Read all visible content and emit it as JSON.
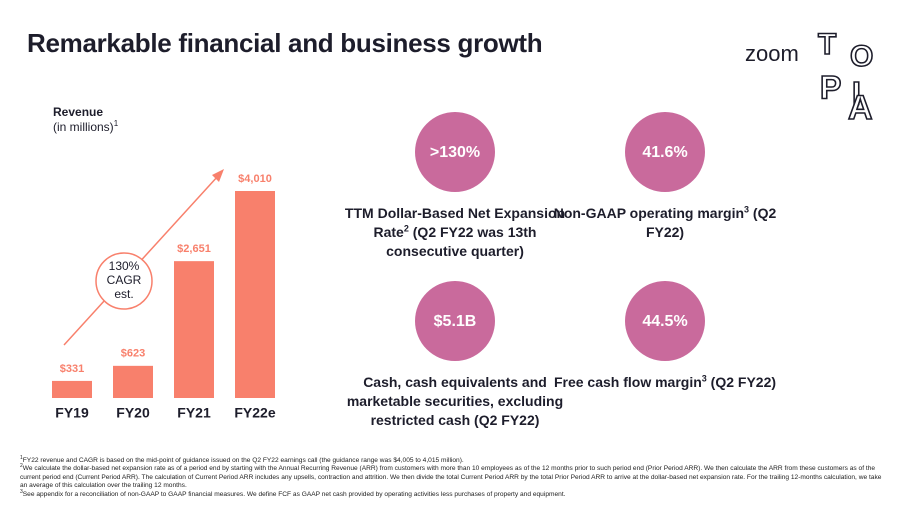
{
  "title": "Remarkable financial and business growth",
  "logo": {
    "word": "zoom",
    "letters": [
      "T",
      "O",
      "P",
      "I",
      "A"
    ]
  },
  "chart_data": {
    "type": "bar",
    "axis_label": "Revenue",
    "axis_sublabel": "(in millions)",
    "axis_sublabel_note": "1",
    "categories": [
      "FY19",
      "FY20",
      "FY21",
      "FY22e"
    ],
    "values": [
      331,
      623,
      2651,
      4010
    ],
    "value_labels": [
      "$331",
      "$623",
      "$2,651",
      "$4,010"
    ],
    "color": "#f8806c",
    "annotation": [
      "130%",
      "CAGR",
      "est."
    ]
  },
  "metrics": [
    {
      "value": ">130%",
      "before": "TTM Dollar-Based Net Expansion Rate",
      "sup": "2",
      "after": " (Q2 FY22 was 13th consecutive quarter)"
    },
    {
      "value": "41.6%",
      "before": "Non-GAAP operating margin",
      "sup": "3",
      "after": " (Q2 FY22)"
    },
    {
      "value": "$5.1B",
      "before": "Cash, cash equivalents and marketable securities, excluding restricted cash (Q2 FY22)",
      "sup": "",
      "after": ""
    },
    {
      "value": "44.5%",
      "before": "Free cash flow margin",
      "sup": "3",
      "after": " (Q2 FY22)"
    }
  ],
  "metric_color": "#c96a9c",
  "footnotes": [
    {
      "mark": "1",
      "text": "FY22 revenue and CAGR is based on the mid-point of guidance issued on the Q2 FY22 earnings call (the guidance range was $4,005 to 4,015 million)."
    },
    {
      "mark": "2",
      "text": "We calculate the dollar-based net expansion rate as of a period end by starting with the Annual Recurring Revenue (ARR) from customers with more than 10 employees as of the 12 months prior to such period end (Prior Period ARR). We then calculate the ARR from these customers as of the current period end (Current Period ARR). The calculation of Current Period ARR includes any upsells, contraction and attrition. We then divide the total Current Period ARR by the total Prior Period ARR to arrive at the dollar-based net expansion rate. For the trailing 12-months calculation, we take an average of this calculation over the trailing 12 months."
    },
    {
      "mark": "3",
      "text": "See appendix for a reconciliation of non-GAAP to GAAP financial measures. We define FCF as GAAP net cash provided by operating activities less purchases of property and equipment."
    }
  ]
}
